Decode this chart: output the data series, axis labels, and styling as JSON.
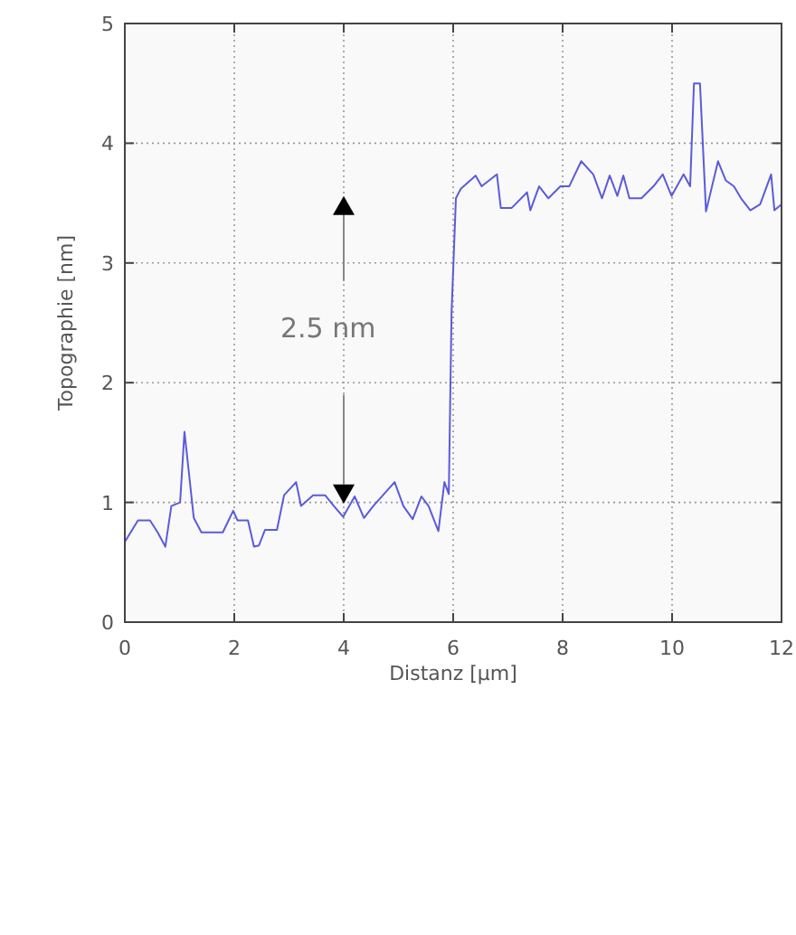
{
  "chart_data": {
    "type": "line",
    "xlabel": "Distanz [μm]",
    "ylabel": "Topographie [nm]",
    "annotations": [
      "2.5 nm"
    ],
    "xlim": [
      0,
      12
    ],
    "xticks": [
      0,
      2,
      4,
      6,
      8,
      10,
      12
    ],
    "ylim": [
      0,
      5
    ],
    "yticks": [
      0,
      1,
      2,
      3,
      4,
      5
    ],
    "grid": true,
    "line_style": "solid",
    "series": [
      {
        "color": "#5b5bdc",
        "x": [
          0,
          0.24,
          0.46,
          0.6,
          0.74,
          0.85,
          1.01,
          1.09,
          1.26,
          1.4,
          1.79,
          1.98,
          2.06,
          2.25,
          2.36,
          2.45,
          2.56,
          2.78,
          2.91,
          3.13,
          3.22,
          3.44,
          3.66,
          3.82,
          3.99,
          4.2,
          4.37,
          4.54,
          4.93,
          5.09,
          5.26,
          5.42,
          5.55,
          5.73,
          5.84,
          5.92,
          5.97,
          6.05,
          6.14,
          6.41,
          6.52,
          6.8,
          6.87,
          7.07,
          7.35,
          7.41,
          7.57,
          7.74,
          7.96,
          8.12,
          8.34,
          8.56,
          8.72,
          8.86,
          9.0,
          9.11,
          9.22,
          9.44,
          9.66,
          9.83,
          9.99,
          10.21,
          10.33,
          10.4,
          10.51,
          10.62,
          10.84,
          10.98,
          11.13,
          11.26,
          11.43,
          11.61,
          11.81,
          11.87,
          12
        ],
        "values": [
          0.67,
          0.85,
          0.85,
          0.75,
          0.63,
          0.97,
          1.0,
          1.59,
          0.87,
          0.75,
          0.75,
          0.93,
          0.85,
          0.85,
          0.63,
          0.64,
          0.77,
          0.77,
          1.06,
          1.17,
          0.97,
          1.06,
          1.06,
          0.97,
          0.88,
          1.05,
          0.87,
          0.97,
          1.17,
          0.97,
          0.86,
          1.05,
          0.97,
          0.76,
          1.17,
          1.07,
          2.58,
          3.54,
          3.62,
          3.73,
          3.64,
          3.74,
          3.46,
          3.46,
          3.59,
          3.44,
          3.64,
          3.54,
          3.64,
          3.64,
          3.85,
          3.74,
          3.54,
          3.73,
          3.56,
          3.73,
          3.54,
          3.54,
          3.64,
          3.74,
          3.56,
          3.74,
          3.64,
          4.5,
          4.5,
          3.43,
          3.85,
          3.69,
          3.64,
          3.54,
          3.44,
          3.49,
          3.74,
          3.44,
          3.49
        ]
      }
    ]
  }
}
